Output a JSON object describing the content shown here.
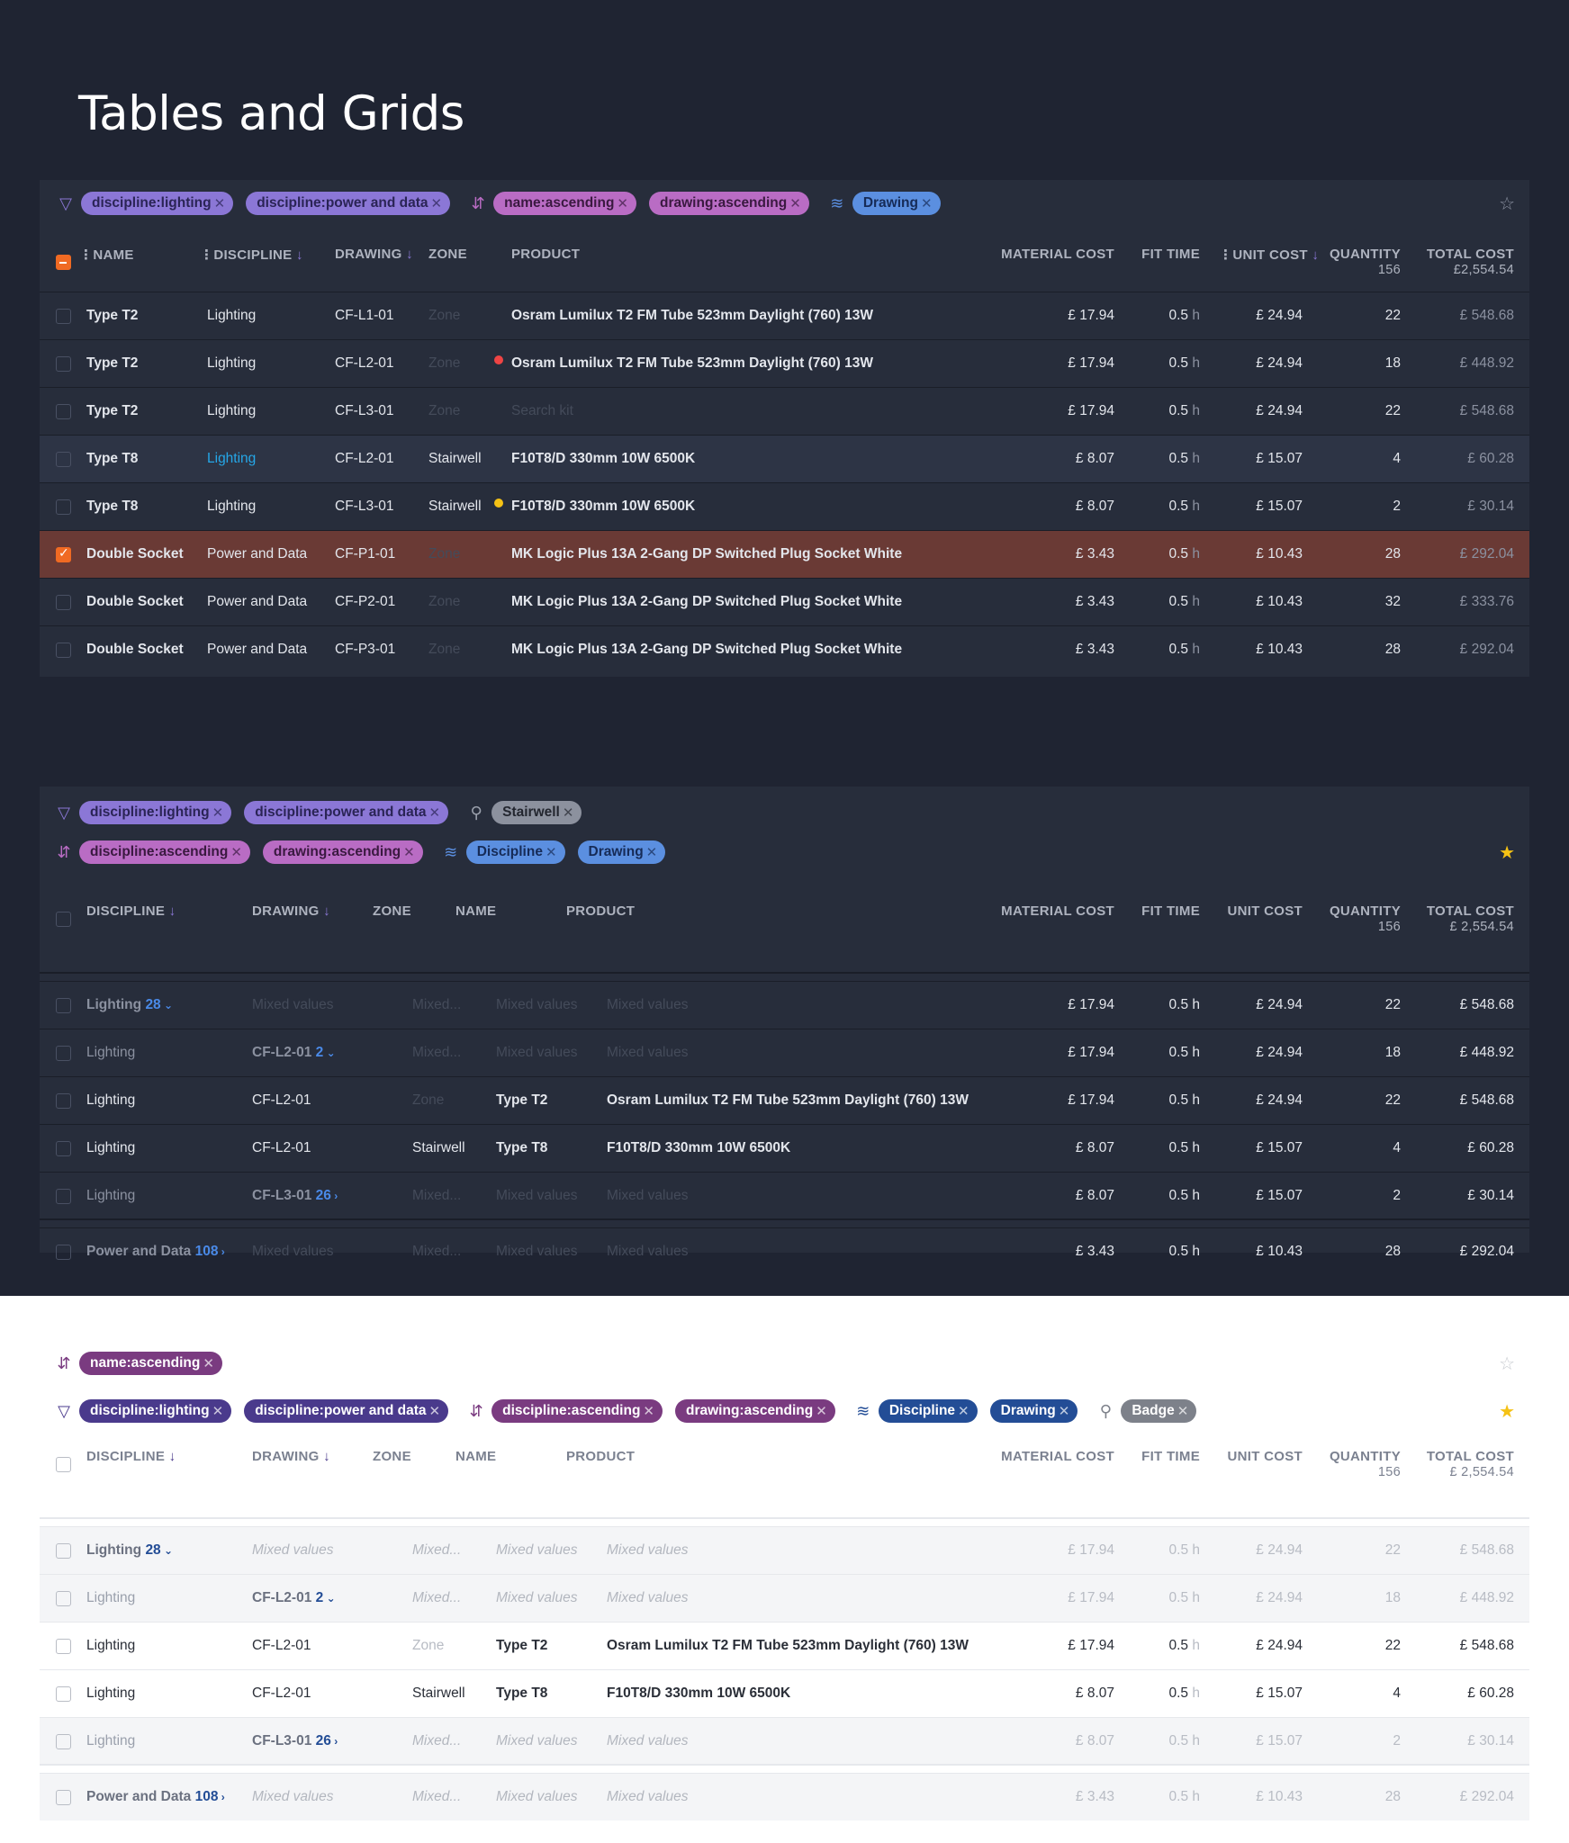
{
  "page_title": "Tables and Grids",
  "icons": {
    "filter": "filter-icon",
    "sort": "sort-icon",
    "group": "layers-icon",
    "search": "search-icon",
    "star": "star-icon"
  },
  "colors": {
    "accent": "#f06a23",
    "filter_chip": "#8b77d6",
    "sort_chip": "#b96cc4",
    "group_chip": "#5b8fe0",
    "star": "#f5c215",
    "selected_row": "#6a3a35"
  },
  "grid1": {
    "filters": [
      "discipline:lighting",
      "discipline:power and data"
    ],
    "sorts": [
      "name:ascending",
      "drawing:ascending"
    ],
    "groups": [
      "Drawing"
    ],
    "headers": {
      "name": "NAME",
      "discipline": "DISCIPLINE",
      "drawing": "DRAWING",
      "zone": "ZONE",
      "product": "PRODUCT",
      "material_cost": "MATERIAL COST",
      "fit_time": "FIT TIME",
      "unit_cost": "UNIT COST",
      "quantity": "QUANTITY",
      "quantity_total": "156",
      "total_cost": "TOTAL COST",
      "total_cost_total": "£2,554.54"
    },
    "rows": [
      {
        "name": "Type T2",
        "discipline": "Lighting",
        "drawing": "CF-L1-01",
        "zone": "Zone",
        "product": "Osram Lumilux T2 FM Tube 523mm Daylight (760) 13W",
        "material": "£ 17.94",
        "fit": "0.5",
        "fit_unit": "h",
        "unit": "£ 24.94",
        "qty": "22",
        "total": "£ 548.68"
      },
      {
        "name": "Type T2",
        "discipline": "Lighting",
        "drawing": "CF-L2-01",
        "zone": "Zone",
        "product": "Osram Lumilux T2 FM Tube 523mm Daylight (760) 13W",
        "material": "£ 17.94",
        "fit": "0.5",
        "fit_unit": "h",
        "unit": "£ 24.94",
        "qty": "18",
        "total": "£ 448.92"
      },
      {
        "name": "Type T2",
        "discipline": "Lighting",
        "drawing": "CF-L3-01",
        "zone": "Zone",
        "product": "Search kit",
        "material": "£ 17.94",
        "fit": "0.5",
        "fit_unit": "h",
        "unit": "£ 24.94",
        "qty": "22",
        "total": "£ 548.68"
      },
      {
        "name": "Type T8",
        "discipline": "Lighting",
        "drawing": "CF-L2-01",
        "zone": "Stairwell",
        "product": "F10T8/D 330mm 10W 6500K",
        "material": "£ 8.07",
        "fit": "0.5",
        "fit_unit": "h",
        "unit": "£ 15.07",
        "qty": "4",
        "total": "£ 60.28"
      },
      {
        "name": "Type T8",
        "discipline": "Lighting",
        "drawing": "CF-L3-01",
        "zone": "Stairwell",
        "product": "F10T8/D 330mm 10W 6500K",
        "material": "£ 8.07",
        "fit": "0.5",
        "fit_unit": "h",
        "unit": "£ 15.07",
        "qty": "2",
        "total": "£ 30.14"
      },
      {
        "name": "Double Socket",
        "discipline": "Power and Data",
        "drawing": "CF-P1-01",
        "zone": "Zone",
        "product": "MK Logic Plus 13A 2-Gang DP Switched  Plug Socket White",
        "material": "£ 3.43",
        "fit": "0.5",
        "fit_unit": "h",
        "unit": "£ 10.43",
        "qty": "28",
        "total": "£ 292.04"
      },
      {
        "name": "Double Socket",
        "discipline": "Power and Data",
        "drawing": "CF-P2-01",
        "zone": "Zone",
        "product": "MK Logic Plus 13A 2-Gang DP Switched  Plug Socket White",
        "material": "£ 3.43",
        "fit": "0.5",
        "fit_unit": "h",
        "unit": "£ 10.43",
        "qty": "32",
        "total": "£ 333.76"
      },
      {
        "name": "Double Socket",
        "discipline": "Power and Data",
        "drawing": "CF-P3-01",
        "zone": "Zone",
        "product": "MK Logic Plus 13A 2-Gang DP Switched  Plug Socket White",
        "material": "£ 3.43",
        "fit": "0.5",
        "fit_unit": "h",
        "unit": "£ 10.43",
        "qty": "28",
        "total": "£ 292.04"
      }
    ]
  },
  "grid2": {
    "filters": [
      "discipline:lighting",
      "discipline:power and data"
    ],
    "search": "Stairwell",
    "sorts": [
      "discipline:ascending",
      "drawing:ascending"
    ],
    "groups": [
      "Discipline",
      "Drawing"
    ],
    "headers": {
      "discipline": "DISCIPLINE",
      "drawing": "DRAWING",
      "zone": "ZONE",
      "name": "NAME",
      "product": "PRODUCT",
      "material_cost": "MATERIAL COST",
      "fit_time": "FIT TIME",
      "unit_cost": "UNIT COST",
      "quantity": "QUANTITY",
      "quantity_total": "156",
      "total_cost": "TOTAL COST",
      "total_cost_total": "£ 2,554.54"
    },
    "rows": [
      {
        "discipline": "Lighting",
        "count": "28",
        "drawing": "Mixed values",
        "zone": "Mixed...",
        "name": "Mixed values",
        "product": "Mixed values",
        "material": "£ 17.94",
        "fit": "0.5 h",
        "unit": "£ 24.94",
        "qty": "22",
        "total": "£ 548.68"
      },
      {
        "discipline": "Lighting",
        "drawing": "CF-L2-01",
        "count": "2",
        "zone": "Mixed...",
        "name": "Mixed values",
        "product": "Mixed values",
        "material": "£ 17.94",
        "fit": "0.5 h",
        "unit": "£ 24.94",
        "qty": "18",
        "total": "£ 448.92"
      },
      {
        "discipline": "Lighting",
        "drawing": "CF-L2-01",
        "zone": "Zone",
        "name": "Type T2",
        "product": "Osram Lumilux T2 FM Tube 523mm Daylight (760) 13W",
        "material": "£ 17.94",
        "fit": "0.5 h",
        "unit": "£ 24.94",
        "qty": "22",
        "total": "£ 548.68"
      },
      {
        "discipline": "Lighting",
        "drawing": "CF-L2-01",
        "zone": "Stairwell",
        "name": "Type T8",
        "product": "F10T8/D 330mm 10W 6500K",
        "material": "£ 8.07",
        "fit": "0.5 h",
        "unit": "£ 15.07",
        "qty": "4",
        "total": "£ 60.28"
      },
      {
        "discipline": "Lighting",
        "drawing": "CF-L3-01",
        "count": "26",
        "zone": "Mixed...",
        "name": "Mixed values",
        "product": "Mixed values",
        "material": "£ 8.07",
        "fit": "0.5 h",
        "unit": "£ 15.07",
        "qty": "2",
        "total": "£ 30.14"
      },
      {
        "discipline": "Power and Data",
        "count": "108",
        "drawing": "Mixed values",
        "zone": "Mixed...",
        "name": "Mixed values",
        "product": "Mixed values",
        "material": "£ 3.43",
        "fit": "0.5 h",
        "unit": "£ 10.43",
        "qty": "28",
        "total": "£ 292.04"
      }
    ]
  },
  "grid3": {
    "top_sort": "name:ascending",
    "filters": [
      "discipline:lighting",
      "discipline:power and data"
    ],
    "sorts": [
      "discipline:ascending",
      "drawing:ascending"
    ],
    "groups": [
      "Discipline",
      "Drawing"
    ],
    "search": "Badge",
    "headers": {
      "discipline": "DISCIPLINE",
      "drawing": "DRAWING",
      "zone": "ZONE",
      "name": "NAME",
      "product": "PRODUCT",
      "material_cost": "MATERIAL COST",
      "fit_time": "FIT TIME",
      "unit_cost": "UNIT COST",
      "quantity": "QUANTITY",
      "quantity_total": "156",
      "total_cost": "TOTAL COST",
      "total_cost_total": "£ 2,554.54"
    },
    "rows": [
      {
        "discipline": "Lighting",
        "count": "28",
        "drawing": "Mixed values",
        "zone": "Mixed...",
        "name": "Mixed values",
        "product": "Mixed values",
        "material": "£ 17.94",
        "fit": "0.5 h",
        "unit": "£ 24.94",
        "qty": "22",
        "total": "£ 548.68"
      },
      {
        "discipline": "Lighting",
        "drawing": "CF-L2-01",
        "count": "2",
        "zone": "Mixed...",
        "name": "Mixed values",
        "product": "Mixed values",
        "material": "£ 17.94",
        "fit": "0.5 h",
        "unit": "£ 24.94",
        "qty": "18",
        "total": "£ 448.92"
      },
      {
        "discipline": "Lighting",
        "drawing": "CF-L2-01",
        "zone": "Zone",
        "name": "Type T2",
        "product": "Osram Lumilux T2 FM Tube 523mm Daylight (760) 13W",
        "material": "£ 17.94",
        "fit": "0.5",
        "fit_unit": "h",
        "unit": "£ 24.94",
        "qty": "22",
        "total": "£ 548.68"
      },
      {
        "discipline": "Lighting",
        "drawing": "CF-L2-01",
        "zone": "Stairwell",
        "name": "Type T8",
        "product": "F10T8/D 330mm 10W 6500K",
        "material": "£ 8.07",
        "fit": "0.5",
        "fit_unit": "h",
        "unit": "£ 15.07",
        "qty": "4",
        "total": "£ 60.28"
      },
      {
        "discipline": "Lighting",
        "drawing": "CF-L3-01",
        "count": "26",
        "zone": "Mixed...",
        "name": "Mixed values",
        "product": "Mixed values",
        "material": "£ 8.07",
        "fit": "0.5 h",
        "unit": "£ 15.07",
        "qty": "2",
        "total": "£ 30.14"
      },
      {
        "discipline": "Power and Data",
        "count": "108",
        "drawing": "Mixed values",
        "zone": "Mixed...",
        "name": "Mixed values",
        "product": "Mixed values",
        "material": "£ 3.43",
        "fit": "0.5 h",
        "unit": "£ 10.43",
        "qty": "28",
        "total": "£ 292.04"
      }
    ]
  }
}
